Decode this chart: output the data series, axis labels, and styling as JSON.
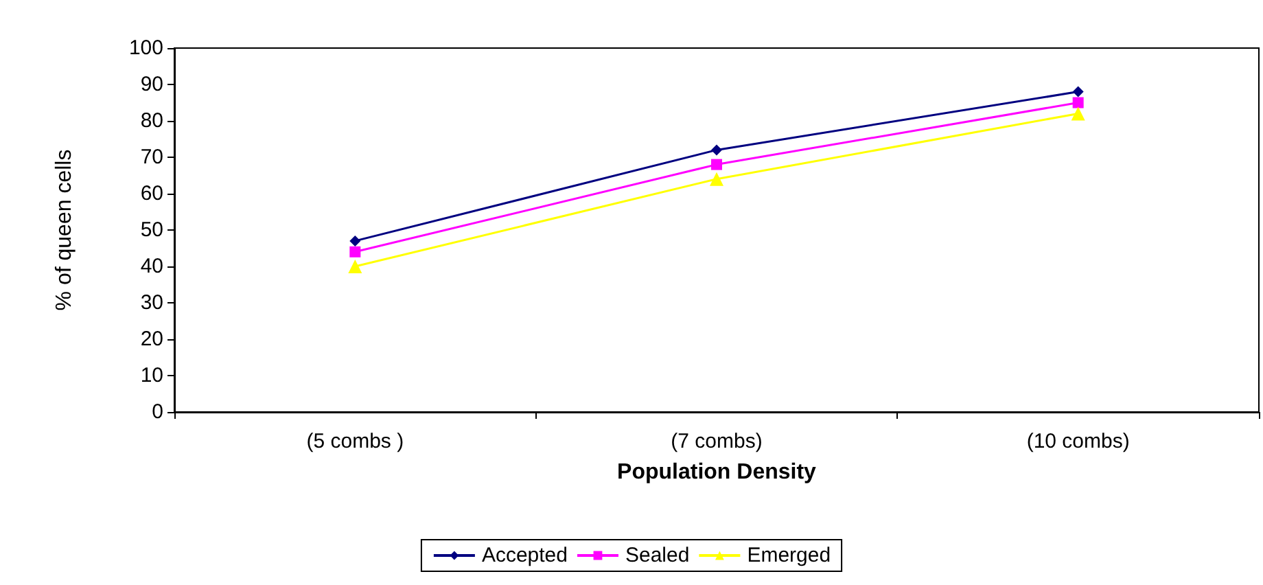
{
  "chart_data": {
    "type": "line",
    "xlabel": "Population Density",
    "ylabel": "% of queen cells",
    "categories": [
      "(5 combs )",
      "(7 combs)",
      "(10 combs)"
    ],
    "series": [
      {
        "name": "Accepted",
        "color": "#000080",
        "marker": "diamond",
        "values": [
          47,
          72,
          88
        ]
      },
      {
        "name": "Sealed",
        "color": "#ff00ff",
        "marker": "square",
        "values": [
          44,
          68,
          85
        ]
      },
      {
        "name": "Emerged",
        "color": "#ffff00",
        "marker": "triangle",
        "values": [
          40,
          64,
          82
        ]
      }
    ],
    "ylim": [
      0,
      100
    ],
    "yticks": [
      0,
      10,
      20,
      30,
      40,
      50,
      60,
      70,
      80,
      90,
      100
    ],
    "grid": false,
    "legend": "bottom",
    "line_style": "solid"
  }
}
